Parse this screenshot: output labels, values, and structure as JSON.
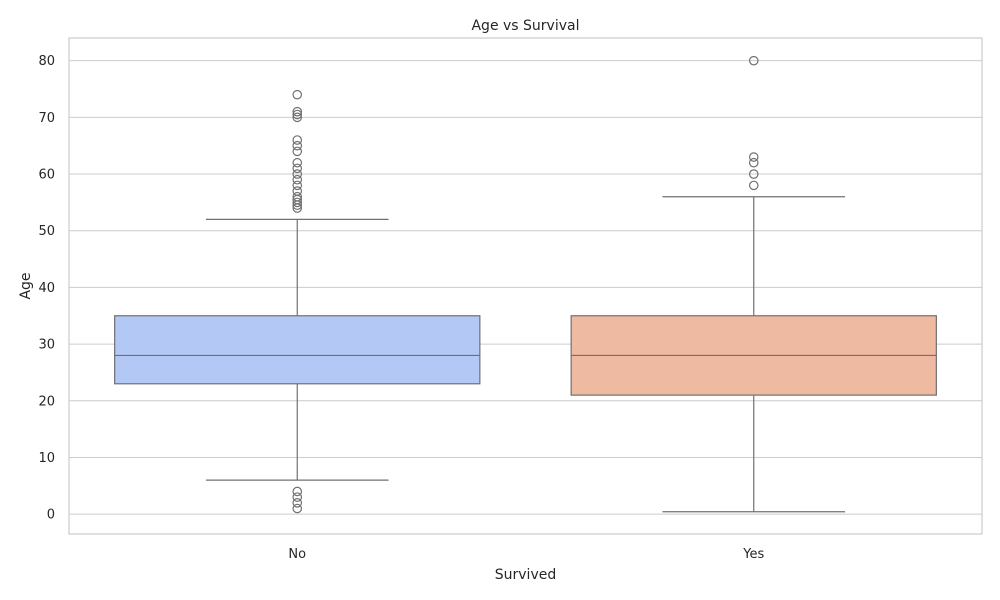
{
  "chart_data": {
    "type": "box",
    "title": "Age vs Survival",
    "xlabel": "Survived",
    "ylabel": "Age",
    "categories": [
      "No",
      "Yes"
    ],
    "ylim": [
      -3.5,
      84
    ],
    "yticks": [
      0,
      10,
      20,
      30,
      40,
      50,
      60,
      70,
      80
    ],
    "grid": true,
    "boxes": [
      {
        "category": "No",
        "color": "#b4c8f5",
        "whisker_low": 6,
        "q1": 23,
        "median": 28,
        "q3": 35,
        "whisker_high": 52,
        "outliers": [
          74,
          71,
          70.5,
          70,
          66,
          65,
          64,
          62,
          61,
          60,
          59,
          58,
          57,
          56,
          55.5,
          55,
          54.5,
          54,
          4,
          3,
          2,
          1
        ]
      },
      {
        "category": "Yes",
        "color": "#eebaa2",
        "whisker_low": 0.42,
        "q1": 21,
        "median": 28,
        "q3": 35,
        "whisker_high": 56,
        "outliers": [
          80,
          63,
          62,
          60,
          58
        ]
      }
    ]
  }
}
